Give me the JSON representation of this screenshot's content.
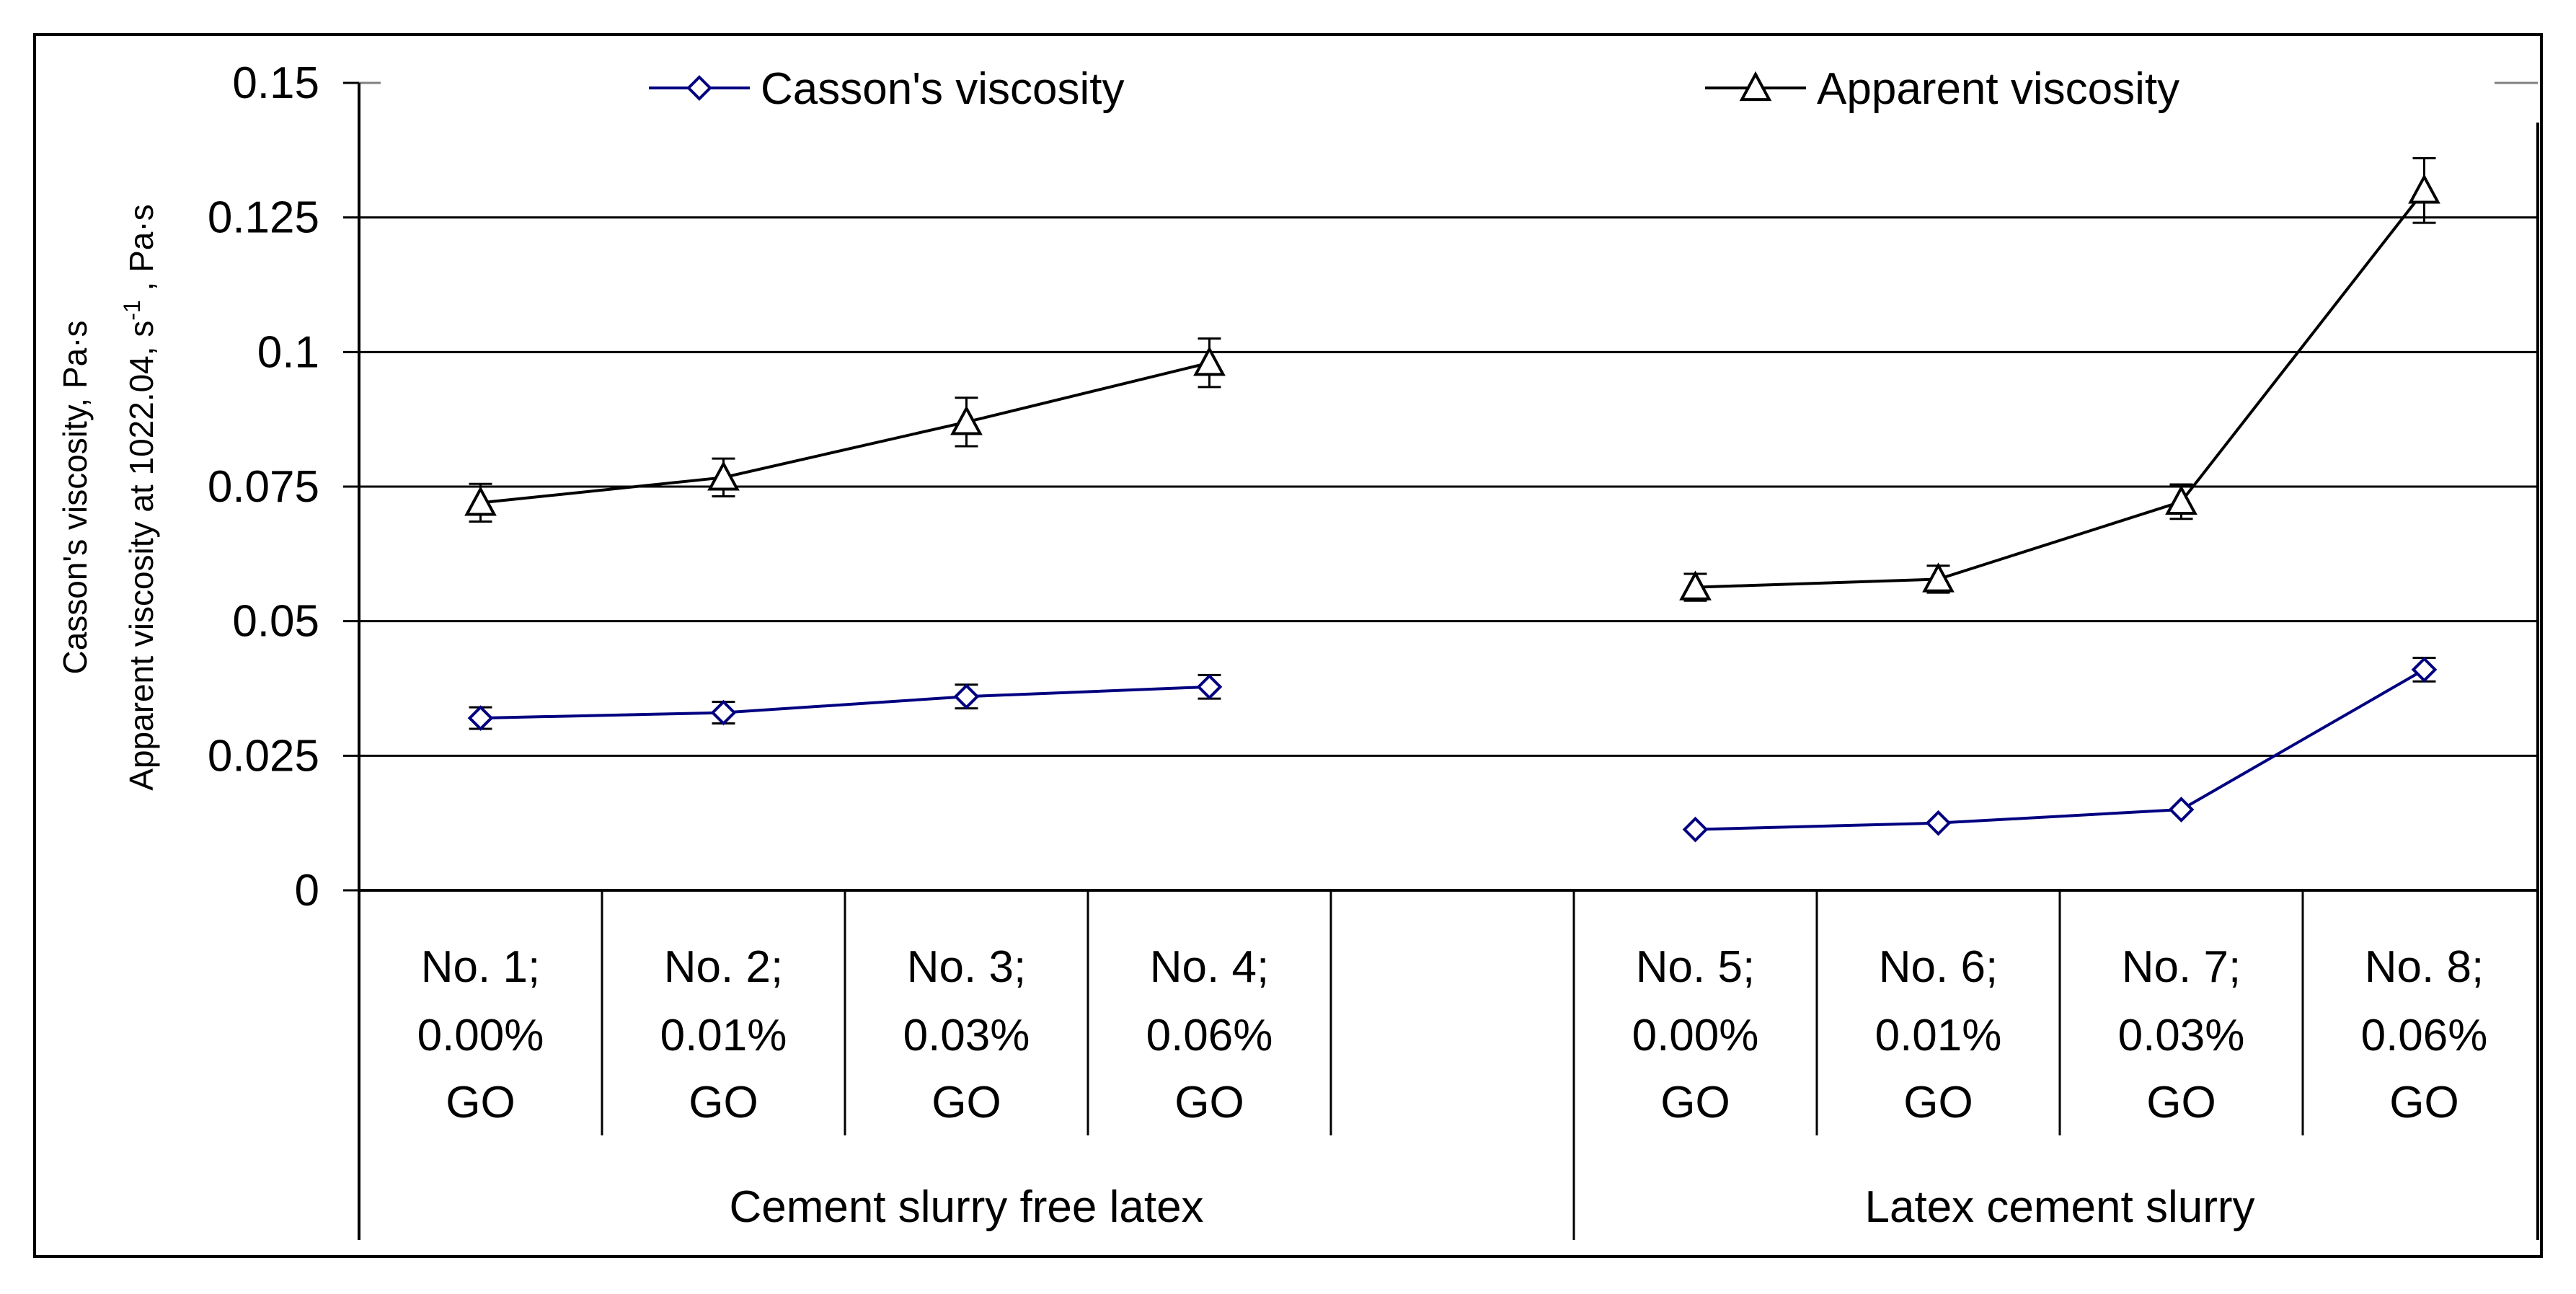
{
  "chart_data": {
    "type": "line",
    "ylim": [
      0,
      0.15
    ],
    "y_ticks": [
      "0",
      "0.025",
      "0.05",
      "0.075",
      "0.1",
      "0.125",
      "0.15"
    ],
    "ylabel_line1": "Casson's viscosity, Pa·s",
    "ylabel_line2_prefix": "Apparent viscosity at 1022.04, s",
    "ylabel_line2_sup": "-1",
    "ylabel_line2_suffix": " , Pa·s",
    "grid": true,
    "legend_position": "top",
    "categories": [
      {
        "line1": "No. 1;",
        "line2": "0.00%",
        "line3": "GO"
      },
      {
        "line1": "No. 2;",
        "line2": "0.01%",
        "line3": "GO"
      },
      {
        "line1": "No. 3;",
        "line2": "0.03%",
        "line3": "GO"
      },
      {
        "line1": "No. 4;",
        "line2": "0.06%",
        "line3": "GO"
      },
      {
        "line1": "",
        "line2": "",
        "line3": ""
      },
      {
        "line1": "No. 5;",
        "line2": "0.00%",
        "line3": "GO"
      },
      {
        "line1": "No. 6;",
        "line2": "0.01%",
        "line3": "GO"
      },
      {
        "line1": "No. 7;",
        "line2": "0.03%",
        "line3": "GO"
      },
      {
        "line1": "No. 8;",
        "line2": "0.06%",
        "line3": "GO"
      }
    ],
    "groups": [
      {
        "label": "Cement slurry free latex",
        "start": 0,
        "end": 4
      },
      {
        "label": "Latex cement slurry",
        "start": 5,
        "end": 8
      }
    ],
    "series": [
      {
        "name": "Casson's viscosity",
        "color": "#000080",
        "marker": "diamond",
        "segments": [
          {
            "indices": [
              0,
              1,
              2,
              3
            ],
            "values": [
              0.032,
              0.033,
              0.036,
              0.0378
            ],
            "errors": [
              0.002,
              0.002,
              0.0022,
              0.0022
            ]
          },
          {
            "indices": [
              5,
              6,
              7,
              8
            ],
            "values": [
              0.0113,
              0.0125,
              0.015,
              0.041
            ],
            "errors": [
              0,
              0,
              0,
              0.0022
            ]
          }
        ]
      },
      {
        "name": "Apparent viscosity",
        "color": "#000000",
        "marker": "triangle",
        "segments": [
          {
            "indices": [
              0,
              1,
              2,
              3
            ],
            "values": [
              0.072,
              0.0767,
              0.087,
              0.098
            ],
            "errors": [
              0.0035,
              0.0035,
              0.0045,
              0.0045
            ]
          },
          {
            "indices": [
              5,
              6,
              7,
              8
            ],
            "values": [
              0.0563,
              0.0578,
              0.0722,
              0.13
            ],
            "errors": [
              0.0025,
              0.0025,
              0.0032,
              0.006
            ]
          }
        ]
      }
    ]
  }
}
